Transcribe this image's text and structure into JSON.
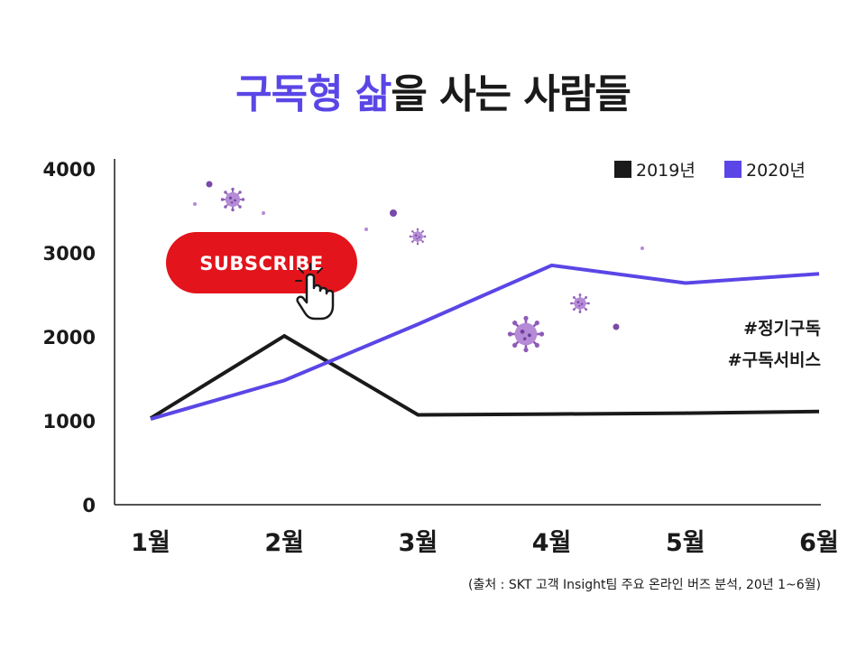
{
  "title": {
    "highlight": "구독형 삶",
    "rest": "을 사는 사람들"
  },
  "colors": {
    "accent": "#5a46e6",
    "series_2019": "#1a1a1a",
    "series_2020": "#5a46e6",
    "subscribe_button": "#e3141b",
    "virus": "#8e5bb8"
  },
  "chart_data": {
    "type": "line",
    "categories": [
      "1월",
      "2월",
      "3월",
      "4월",
      "5월",
      "6월"
    ],
    "series": [
      {
        "name": "2019년",
        "values": [
          1030,
          2010,
          1070,
          1080,
          1090,
          1110
        ]
      },
      {
        "name": "2020년",
        "values": [
          1020,
          1480,
          2150,
          2850,
          2640,
          2750
        ]
      }
    ],
    "ylim": [
      0,
      4000
    ],
    "yticks": [
      0,
      1000,
      2000,
      3000,
      4000
    ],
    "legend_position": "top-right",
    "grid": false
  },
  "subscribe_button": {
    "label": "SUBSCRIBE",
    "icon": "pointer-hand-icon"
  },
  "decoration_icons": [
    "virus-icon"
  ],
  "hashtags": [
    "#정기구독",
    "#구독서비스"
  ],
  "source_note": "(출처 : SKT 고객 Insight팀 주요 온라인 버즈 분석, 20년 1~6월)"
}
